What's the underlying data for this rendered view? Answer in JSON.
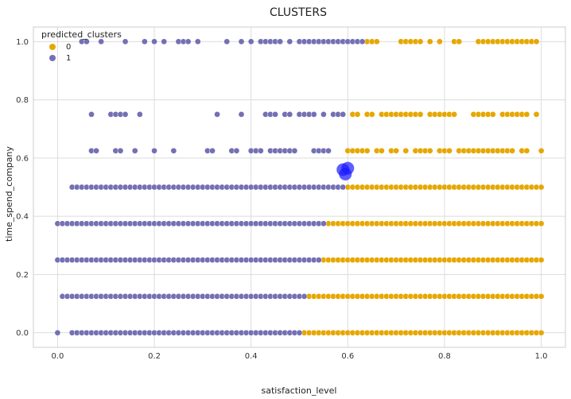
{
  "chart_data": {
    "type": "scatter",
    "title": "CLUSTERS",
    "xlabel": "satisfaction_level",
    "ylabel": "time_spend_company",
    "xlim": [
      -0.05,
      1.05
    ],
    "ylim": [
      -0.05,
      1.05
    ],
    "xticks": [
      "0.0",
      "0.2",
      "0.4",
      "0.6",
      "0.8",
      "1.0"
    ],
    "yticks": [
      "0.0",
      "0.2",
      "0.4",
      "0.6",
      "0.8",
      "1.0"
    ],
    "grid": true,
    "legend": {
      "title": "predicted_clusters",
      "placement": "top-left",
      "entries": [
        {
          "label": "0",
          "color": "#e6a700"
        },
        {
          "label": "1",
          "color": "#7370b3"
        }
      ]
    },
    "series": [
      {
        "name": "0",
        "color": "#e6a700",
        "rows": [
          {
            "y": 1.0,
            "x": [
              0.64,
              0.65,
              0.66,
              0.71,
              0.72,
              0.73,
              0.74,
              0.75,
              0.77,
              0.79,
              0.82,
              0.83,
              0.87,
              0.88,
              0.89,
              0.9,
              0.91,
              0.92,
              0.93,
              0.94,
              0.95,
              0.96,
              0.97,
              0.98,
              0.99
            ]
          },
          {
            "y": 0.75,
            "x": [
              0.61,
              0.62,
              0.64,
              0.65,
              0.67,
              0.68,
              0.69,
              0.7,
              0.71,
              0.72,
              0.73,
              0.74,
              0.75,
              0.77,
              0.78,
              0.79,
              0.8,
              0.81,
              0.82,
              0.86,
              0.87,
              0.88,
              0.89,
              0.9,
              0.92,
              0.93,
              0.94,
              0.95,
              0.96,
              0.97,
              0.99
            ]
          },
          {
            "y": 0.625,
            "x": [
              0.6,
              0.61,
              0.62,
              0.63,
              0.64,
              0.66,
              0.67,
              0.69,
              0.7,
              0.72,
              0.74,
              0.75,
              0.76,
              0.77,
              0.79,
              0.8,
              0.81,
              0.83,
              0.84,
              0.85,
              0.86,
              0.87,
              0.88,
              0.89,
              0.9,
              0.91,
              0.92,
              0.93,
              0.94,
              0.96,
              0.97,
              1.0
            ]
          }
        ],
        "ranges": [
          {
            "y": 0.5,
            "from": 0.6,
            "to": 1.0,
            "step": 0.01
          },
          {
            "y": 0.375,
            "from": 0.56,
            "to": 1.0,
            "step": 0.01
          },
          {
            "y": 0.25,
            "from": 0.55,
            "to": 1.0,
            "step": 0.01
          },
          {
            "y": 0.125,
            "from": 0.52,
            "to": 1.0,
            "step": 0.01
          },
          {
            "y": 0.0,
            "from": 0.51,
            "to": 1.0,
            "step": 0.01
          }
        ]
      },
      {
        "name": "1",
        "color": "#7370b3",
        "rows": [
          {
            "y": 1.0,
            "x": [
              0.05,
              0.06,
              0.09,
              0.14,
              0.18,
              0.2,
              0.22,
              0.25,
              0.26,
              0.27,
              0.29,
              0.35,
              0.38,
              0.4,
              0.42,
              0.43,
              0.44,
              0.45,
              0.46,
              0.48,
              0.5,
              0.51,
              0.52,
              0.53,
              0.54,
              0.55,
              0.56,
              0.57,
              0.58,
              0.59,
              0.6,
              0.61,
              0.62,
              0.63
            ]
          },
          {
            "y": 0.75,
            "x": [
              0.07,
              0.11,
              0.12,
              0.13,
              0.14,
              0.17,
              0.33,
              0.38,
              0.43,
              0.44,
              0.45,
              0.47,
              0.48,
              0.5,
              0.51,
              0.52,
              0.53,
              0.55,
              0.57,
              0.58,
              0.59
            ]
          },
          {
            "y": 0.625,
            "x": [
              0.07,
              0.08,
              0.12,
              0.13,
              0.16,
              0.2,
              0.24,
              0.31,
              0.32,
              0.36,
              0.37,
              0.4,
              0.41,
              0.42,
              0.44,
              0.45,
              0.46,
              0.47,
              0.48,
              0.49,
              0.53,
              0.54,
              0.55,
              0.56
            ]
          }
        ],
        "ranges": [
          {
            "y": 0.5,
            "from": 0.03,
            "to": 0.59,
            "step": 0.01
          },
          {
            "y": 0.375,
            "from": 0.0,
            "to": 0.55,
            "step": 0.01
          },
          {
            "y": 0.25,
            "from": 0.0,
            "to": 0.54,
            "step": 0.01
          },
          {
            "y": 0.125,
            "from": 0.01,
            "to": 0.51,
            "step": 0.01
          },
          {
            "y": 0.0,
            "from": 0.03,
            "to": 0.5,
            "step": 0.01,
            "include": [
              0.0
            ]
          }
        ]
      }
    ],
    "centroids": {
      "color": "#1a1aff",
      "points": [
        {
          "x": 0.59,
          "y": 0.56
        },
        {
          "x": 0.595,
          "y": 0.545
        },
        {
          "x": 0.6,
          "y": 0.565
        }
      ]
    }
  }
}
